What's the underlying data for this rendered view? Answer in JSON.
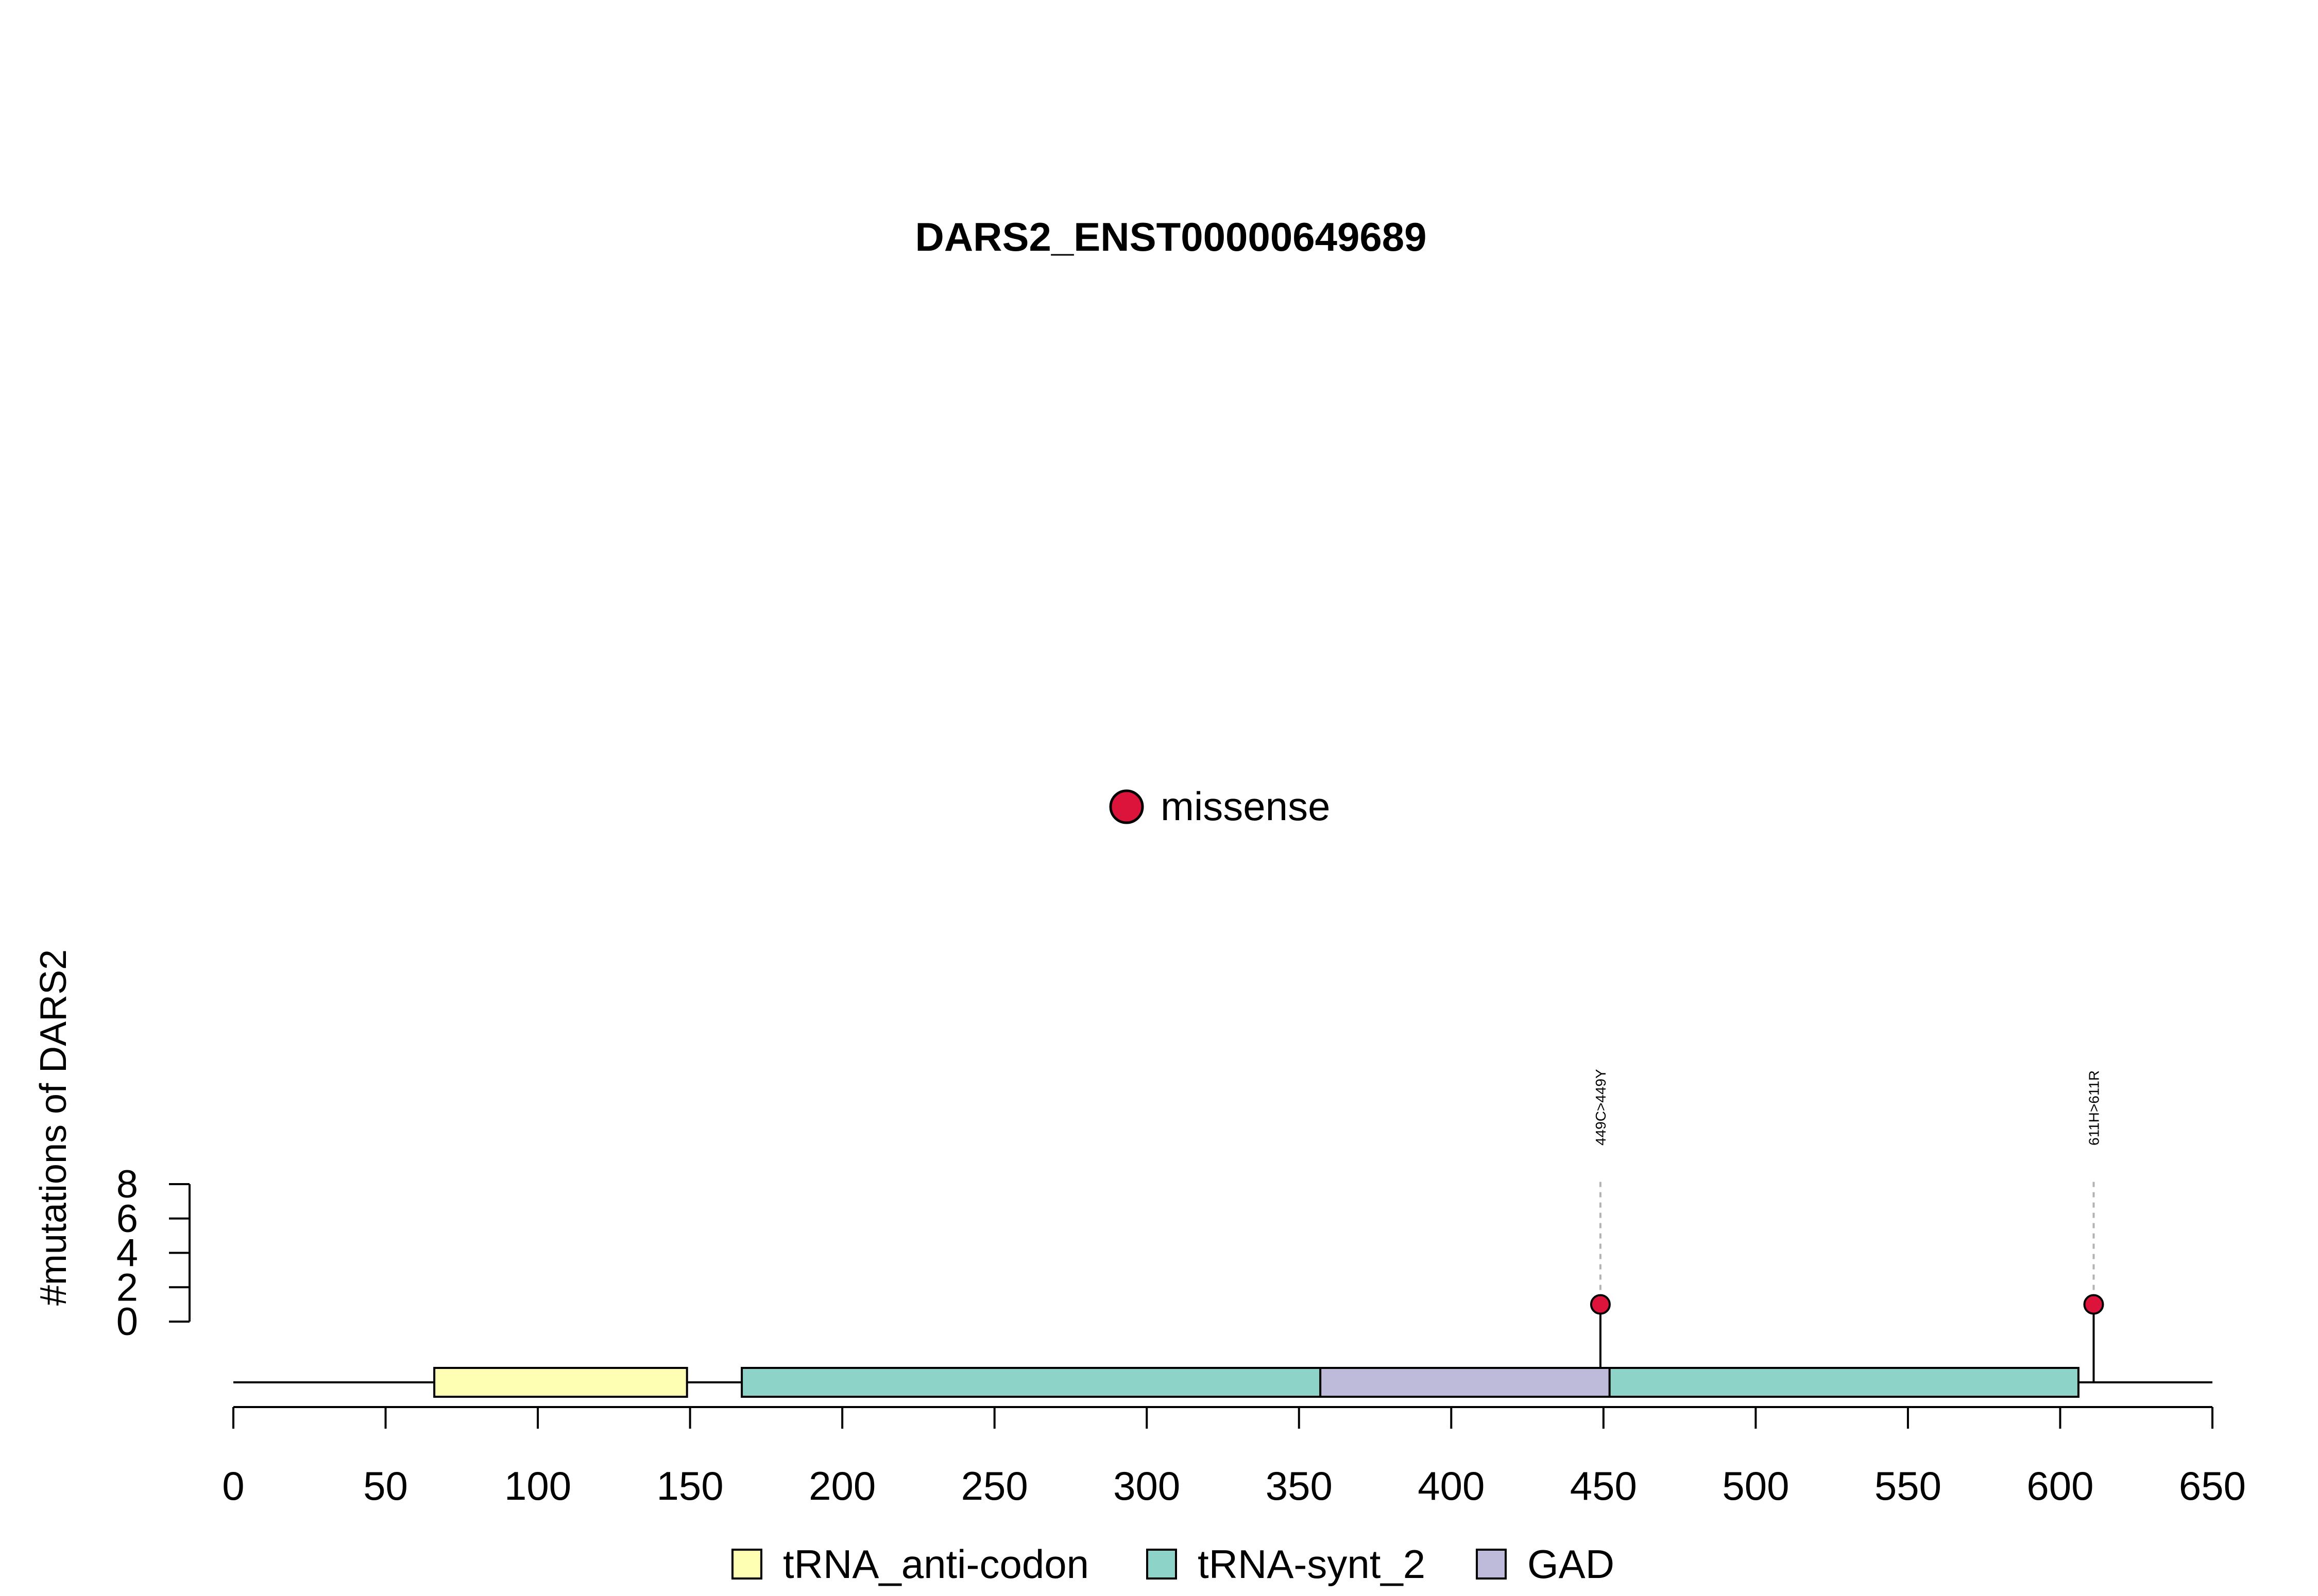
{
  "chart_data": {
    "type": "lollipop",
    "title": "DARS2_ENST00000649689",
    "ylabel": "#mutations of DARS2",
    "xlim": [
      0,
      650
    ],
    "x_ticks": [
      0,
      50,
      100,
      150,
      200,
      250,
      300,
      350,
      400,
      450,
      500,
      550,
      600,
      650
    ],
    "ylim": [
      0,
      8
    ],
    "y_ticks": [
      0,
      2,
      4,
      6,
      8
    ],
    "protein_length": 650,
    "domains": [
      {
        "name": "tRNA_anti-codon",
        "start": 66,
        "end": 149,
        "color": "#ffffb3"
      },
      {
        "name": "tRNA-synt_2",
        "start": 167,
        "end": 606,
        "color": "#8dd3c7"
      },
      {
        "name": "GAD",
        "start": 357,
        "end": 452,
        "color": "#bebada"
      }
    ],
    "mutations": [
      {
        "position": 449,
        "count": 1,
        "label": "449C>449Y",
        "type": "missense"
      },
      {
        "position": 611,
        "count": 1,
        "label": "611H>611R",
        "type": "missense"
      }
    ],
    "mutation_legend": [
      {
        "label": "missense",
        "color": "#dc143c"
      }
    ],
    "domain_legend": [
      "tRNA_anti-codon",
      "tRNA-synt_2",
      "GAD"
    ]
  }
}
